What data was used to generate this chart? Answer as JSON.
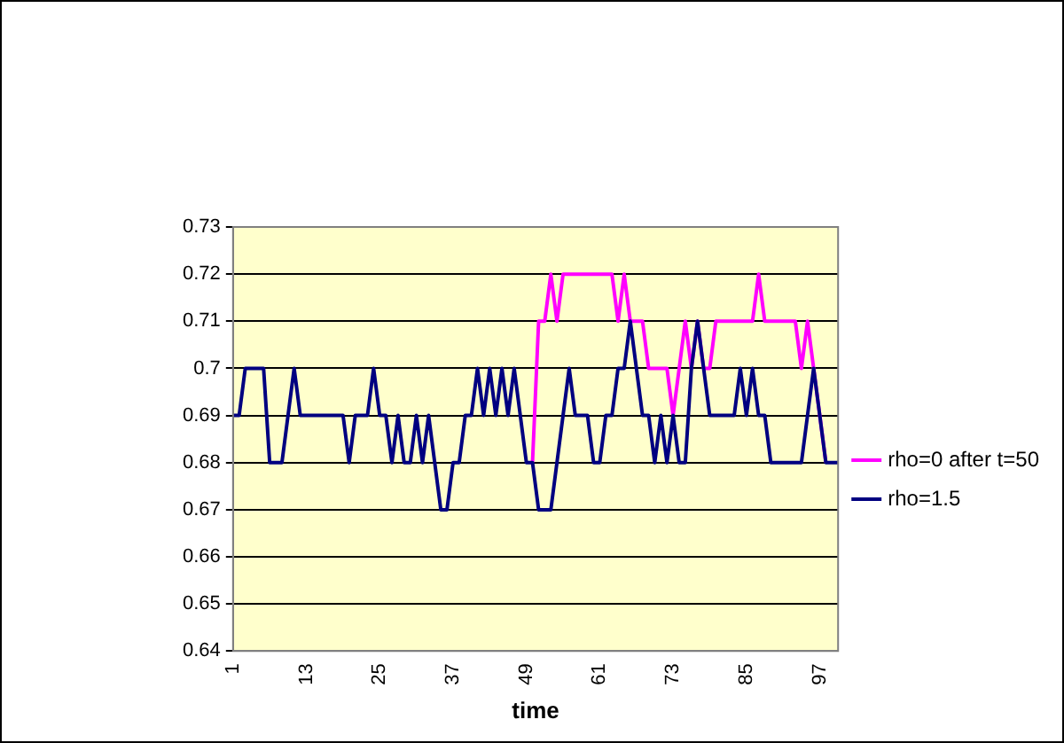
{
  "chart_data": {
    "type": "line",
    "xlabel": "time",
    "categories": [
      "1",
      null,
      null,
      null,
      null,
      null,
      null,
      null,
      null,
      null,
      null,
      null,
      "13",
      null,
      null,
      null,
      null,
      null,
      null,
      null,
      null,
      null,
      null,
      null,
      "25",
      null,
      null,
      null,
      null,
      null,
      null,
      null,
      null,
      null,
      null,
      null,
      "37",
      null,
      null,
      null,
      null,
      null,
      null,
      null,
      null,
      null,
      null,
      null,
      "49",
      null,
      null,
      null,
      null,
      null,
      null,
      null,
      null,
      null,
      null,
      null,
      "61",
      null,
      null,
      null,
      null,
      null,
      null,
      null,
      null,
      null,
      null,
      null,
      "73",
      null,
      null,
      null,
      null,
      null,
      null,
      null,
      null,
      null,
      null,
      null,
      "85",
      null,
      null,
      null,
      null,
      null,
      null,
      null,
      null,
      null,
      null,
      null,
      "97",
      null,
      null,
      null
    ],
    "series": [
      {
        "name": "rho=0 after t=50",
        "color": "#ff00ff",
        "values": [
          null,
          null,
          null,
          null,
          null,
          null,
          null,
          null,
          null,
          null,
          null,
          null,
          null,
          null,
          null,
          null,
          null,
          null,
          null,
          null,
          null,
          null,
          null,
          null,
          null,
          null,
          null,
          null,
          null,
          null,
          null,
          null,
          null,
          null,
          null,
          null,
          null,
          null,
          null,
          null,
          null,
          null,
          null,
          null,
          null,
          null,
          null,
          null,
          null,
          0.68,
          0.71,
          0.71,
          0.72,
          0.71,
          0.72,
          0.72,
          0.72,
          0.72,
          0.72,
          0.72,
          0.72,
          0.72,
          0.72,
          0.71,
          0.72,
          0.71,
          0.71,
          0.71,
          0.7,
          0.7,
          0.7,
          0.7,
          0.69,
          0.7,
          0.71,
          0.7,
          0.71,
          0.7,
          0.7,
          0.71,
          0.71,
          0.71,
          0.71,
          0.71,
          0.71,
          0.71,
          0.72,
          0.71,
          0.71,
          0.71,
          0.71,
          0.71,
          0.71,
          0.7,
          0.71,
          0.7,
          0.69,
          0.68,
          null,
          null
        ]
      },
      {
        "name": "rho=1.5",
        "color": "#000080",
        "values": [
          0.69,
          0.69,
          0.7,
          0.7,
          0.7,
          0.7,
          0.68,
          0.68,
          0.68,
          0.69,
          0.7,
          0.69,
          0.69,
          0.69,
          0.69,
          0.69,
          0.69,
          0.69,
          0.69,
          0.68,
          0.69,
          0.69,
          0.69,
          0.7,
          0.69,
          0.69,
          0.68,
          0.69,
          0.68,
          0.68,
          0.69,
          0.68,
          0.69,
          0.68,
          0.67,
          0.67,
          0.68,
          0.68,
          0.69,
          0.69,
          0.7,
          0.69,
          0.7,
          0.69,
          0.7,
          0.69,
          0.7,
          0.69,
          0.68,
          0.68,
          0.67,
          0.67,
          0.67,
          0.68,
          0.69,
          0.7,
          0.69,
          0.69,
          0.69,
          0.68,
          0.68,
          0.69,
          0.69,
          0.7,
          0.7,
          0.71,
          0.7,
          0.69,
          0.69,
          0.68,
          0.69,
          0.68,
          0.69,
          0.68,
          0.68,
          0.7,
          0.71,
          0.7,
          0.69,
          0.69,
          0.69,
          0.69,
          0.69,
          0.7,
          0.69,
          0.7,
          0.69,
          0.69,
          0.68,
          0.68,
          0.68,
          0.68,
          0.68,
          0.68,
          0.69,
          0.7,
          0.69,
          0.68,
          0.68,
          0.68
        ]
      }
    ],
    "ylim": [
      0.64,
      0.73
    ],
    "yticks": [
      0.64,
      0.65,
      0.66,
      0.67,
      0.68,
      0.69,
      0.7,
      0.71,
      0.72,
      0.73
    ],
    "grid": "y",
    "legend": "right",
    "marker": "none",
    "line_style": "solid"
  }
}
